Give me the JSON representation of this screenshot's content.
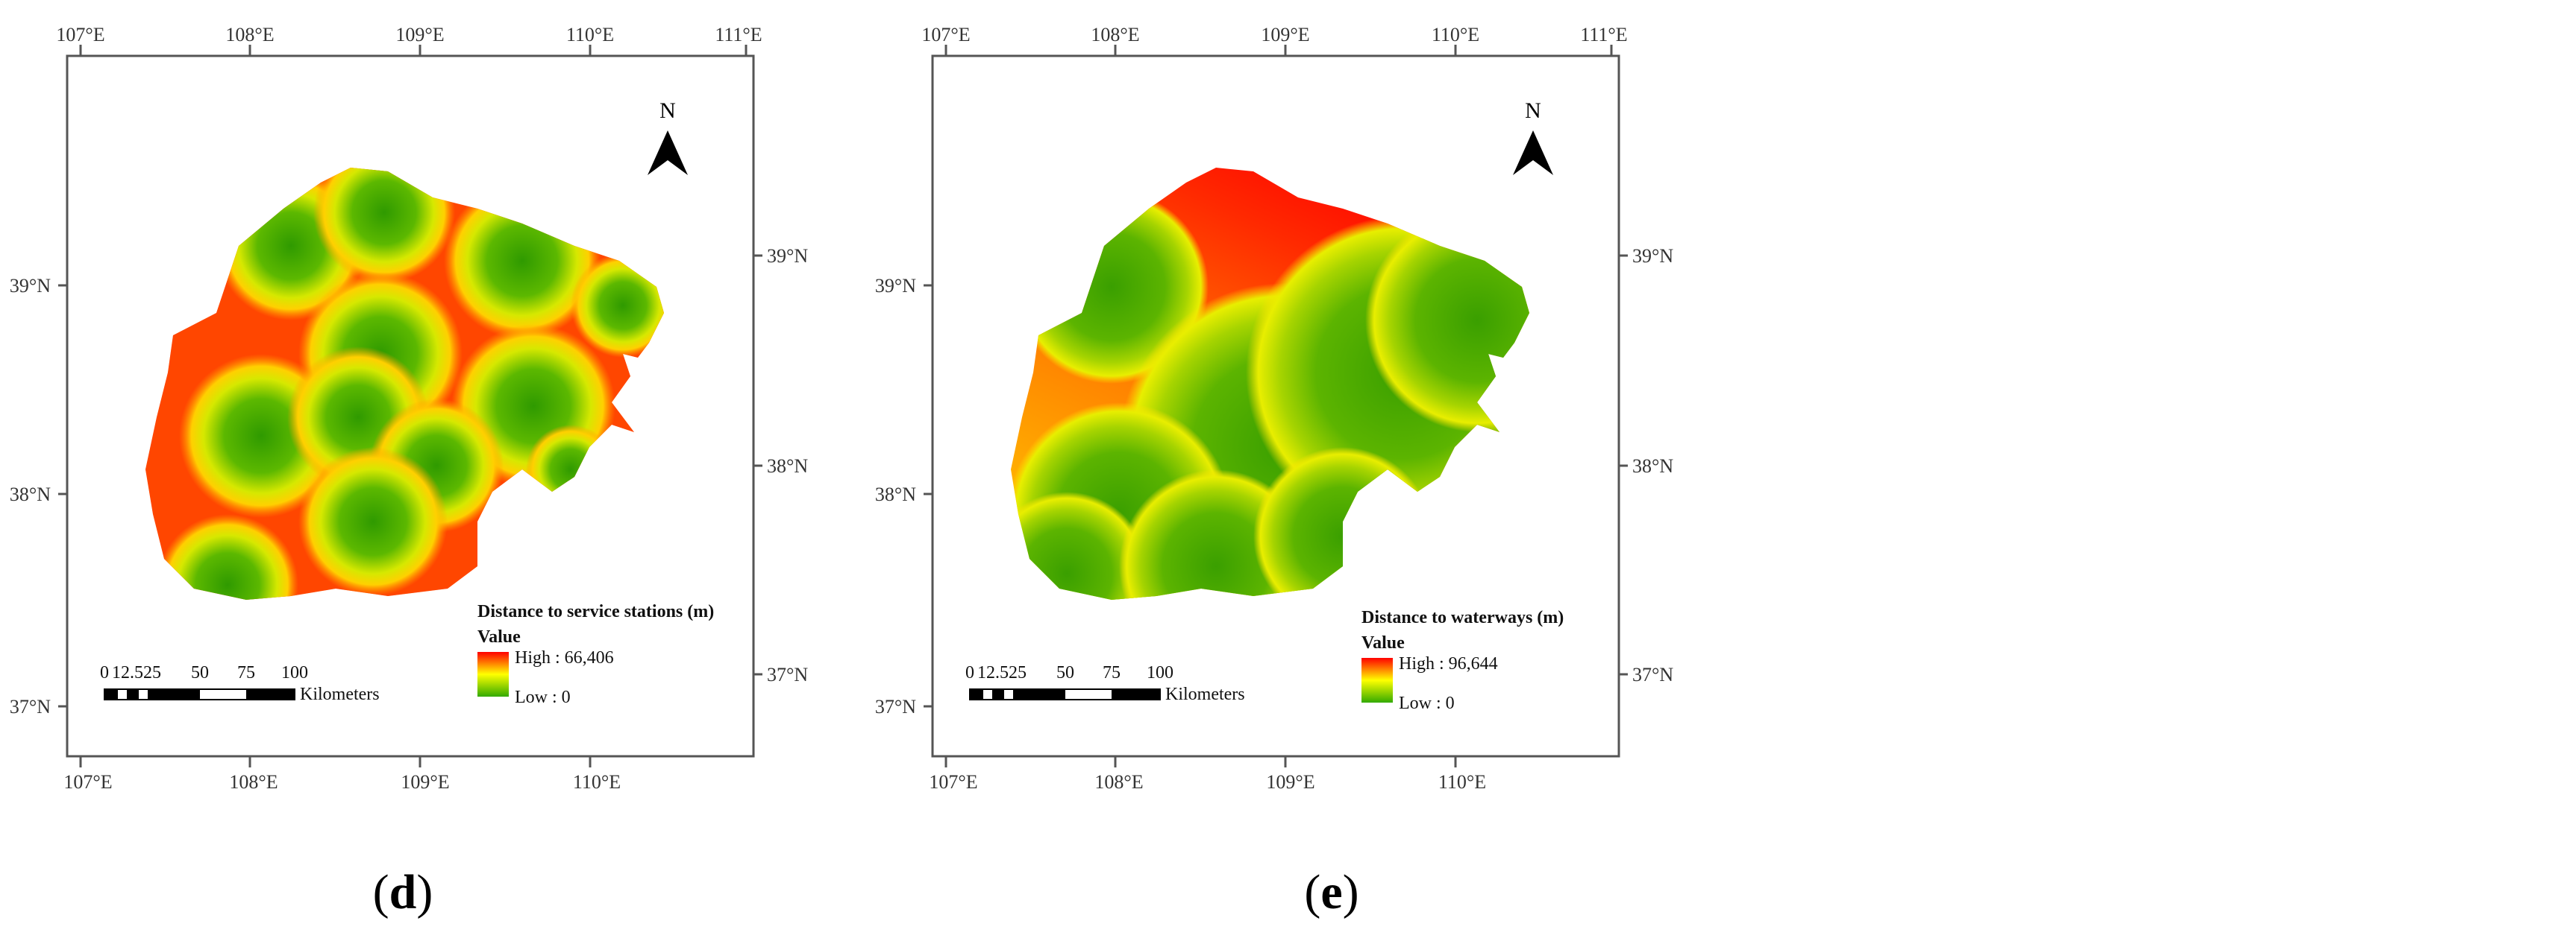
{
  "figure": {
    "panels": [
      {
        "id": "d",
        "label_open": "(",
        "label_letter": "d",
        "label_close": ")",
        "legend_title": "Distance to service stations (m)",
        "legend_value_heading": "Value",
        "legend_high": "High : 66,406",
        "legend_low": "Low : 0",
        "north_label": "N",
        "scale_ticks": [
          "0",
          "12.525",
          "50",
          "75",
          "100"
        ],
        "scale_unit": "Kilometers",
        "top_lon_labels": [
          "107°E",
          "108°E",
          "109°E",
          "110°E",
          "111°E"
        ],
        "bottom_lon_labels": [
          "107°E",
          "108°E",
          "109°E",
          "110°E"
        ],
        "left_lat_labels": [
          "39°N",
          "38°N",
          "37°N"
        ],
        "right_lat_labels": [
          "39°N",
          "38°N",
          "37°N"
        ]
      },
      {
        "id": "e",
        "label_open": "(",
        "label_letter": "e",
        "label_close": ")",
        "legend_title": "Distance to waterways (m)",
        "legend_value_heading": "Value",
        "legend_high": "High : 96,644",
        "legend_low": "Low : 0",
        "north_label": "N",
        "scale_ticks": [
          "0",
          "12.525",
          "50",
          "75",
          "100"
        ],
        "scale_unit": "Kilometers",
        "top_lon_labels": [
          "107°E",
          "108°E",
          "109°E",
          "110°E",
          "111°E"
        ],
        "bottom_lon_labels": [
          "107°E",
          "108°E",
          "109°E",
          "110°E"
        ],
        "left_lat_labels": [
          "39°N",
          "38°N",
          "37°N"
        ],
        "right_lat_labels": [
          "39°N",
          "38°N",
          "37°N"
        ]
      }
    ],
    "colors": {
      "high": "#ff0000",
      "mid": "#ffff00",
      "low": "#33aa00"
    }
  }
}
